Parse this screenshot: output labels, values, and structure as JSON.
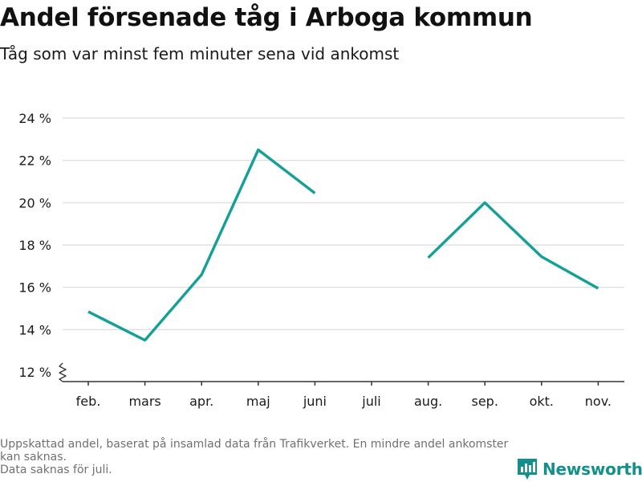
{
  "chart_data": {
    "type": "line",
    "title": "Andel försenade tåg i Arboga kommun",
    "subtitle": "Tåg som var minst fem minuter sena vid ankomst",
    "categories": [
      "feb.",
      "mars",
      "apr.",
      "maj",
      "juni",
      "juli",
      "aug.",
      "sep.",
      "okt.",
      "nov."
    ],
    "series": [
      {
        "values": [
          14.85,
          13.5,
          16.6,
          22.5,
          20.45,
          null,
          17.4,
          20.0,
          17.45,
          15.95
        ]
      }
    ],
    "y_ticks": [
      12,
      14,
      16,
      18,
      20,
      22,
      24
    ],
    "y_tick_labels": [
      "12 %",
      "14 %",
      "16 %",
      "18 %",
      "20 %",
      "22 %",
      "24 %"
    ],
    "ylim": [
      12,
      24
    ],
    "xlabel": "",
    "ylabel": "",
    "grid": true,
    "axis_break": true,
    "line_color": "#14a098"
  },
  "footnotes": [
    "Uppskattad andel, baserat på insamlad data från Trafikverket. En mindre andel ankomster kan saknas.",
    "Data saknas för juli."
  ],
  "brand": {
    "name": "Newsworthy",
    "icon": "newsworthy-logo-icon",
    "color": "#14908c"
  }
}
